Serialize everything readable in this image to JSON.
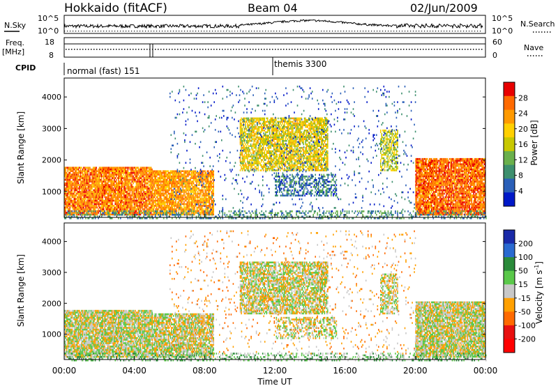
{
  "header": {
    "title": "Hokkaido (fitACF)",
    "beam": "Beam 04",
    "date": "02/Jun/2009"
  },
  "noise_panel": {
    "left_label": "N.Sky",
    "right_label": "N.Search",
    "left_ticks": [
      "10^5",
      "10^0"
    ],
    "right_ticks": [
      "10^5",
      "10^0"
    ]
  },
  "freq_panel": {
    "left_label_1": "Freq.",
    "left_label_2": "[MHz]",
    "right_label": "Nave",
    "left_ticks": [
      "18",
      "8"
    ],
    "right_ticks": [
      "60",
      "0"
    ]
  },
  "cpid": {
    "label": "CPID",
    "segments": [
      {
        "text": "normal (fast) 151",
        "start_hour": 0
      },
      {
        "text": "themis 3300",
        "start_hour": 12
      }
    ]
  },
  "chart_data": [
    {
      "type": "heatmap",
      "ylabel": "Slant Range [km]",
      "y_ticks": [
        "1000",
        "2000",
        "3000",
        "4000"
      ],
      "x_ticks": [
        "00:00",
        "04:00",
        "08:00",
        "12:00",
        "16:00",
        "20:00",
        "00:00"
      ],
      "xlim_hours": [
        0,
        24
      ],
      "ylim_km": [
        180,
        4600
      ],
      "colorbar": {
        "label": "Power [dB]",
        "ticks": [
          "28",
          "24",
          "20",
          "16",
          "12",
          "8",
          "4"
        ],
        "colors": [
          "#e80000",
          "#ff6a00",
          "#ff9a00",
          "#ffd000",
          "#c8c800",
          "#6ab04c",
          "#3d8f6e",
          "#2a5fb8",
          "#0018c8"
        ]
      }
    },
    {
      "type": "heatmap",
      "ylabel": "Slant Range [km]",
      "y_ticks": [
        "1000",
        "2000",
        "3000",
        "4000"
      ],
      "x_ticks": [
        "00:00",
        "04:00",
        "08:00",
        "12:00",
        "16:00",
        "20:00",
        "00:00"
      ],
      "xlabel": "Time UT",
      "xlim_hours": [
        0,
        24
      ],
      "ylim_km": [
        180,
        4600
      ],
      "colorbar": {
        "label": "Velocity [m s",
        "label_sup": "-1",
        "label_end": "]",
        "ticks": [
          "200",
          "100",
          "50",
          "15",
          "-15",
          "-50",
          "-100",
          "-200"
        ],
        "colors": [
          "#1a2aa8",
          "#2a6ad0",
          "#2a8a3a",
          "#5ac84a",
          "#c8c8c8",
          "#ffa000",
          "#ff6a00",
          "#e81010",
          "#ff0000"
        ]
      }
    }
  ]
}
